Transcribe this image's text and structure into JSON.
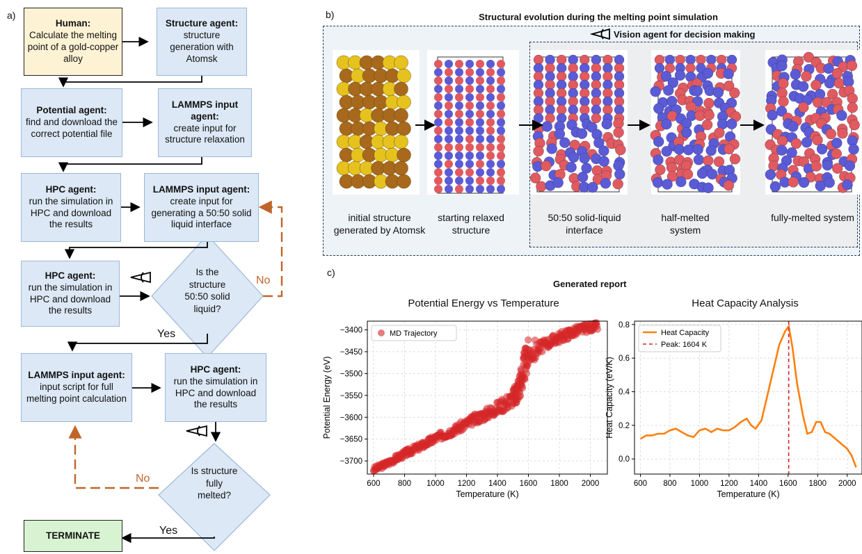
{
  "panel_a": {
    "letter": "a)",
    "human": {
      "title": "Human:",
      "text": "Calculate the melting point of a gold-copper alloy"
    },
    "structure_agent": {
      "title": "Structure agent:",
      "text": "structure generation with Atomsk"
    },
    "potential_agent": {
      "title": "Potential agent:",
      "text": "find and download the correct potential file"
    },
    "lammps_relax": {
      "title": "LAMMPS input agent:",
      "text": "create input for structure relaxation"
    },
    "hpc_1": {
      "title": "HPC agent:",
      "text": "run the simulation in HPC and download the results"
    },
    "lammps_interface": {
      "title": "LAMMPS input agent:",
      "text": "create input for generating a 50:50 solid liquid interface"
    },
    "hpc_2": {
      "title": "HPC agent:",
      "text": "run the simulation in HPC and download the results"
    },
    "decision_1": "Is the structure 50:50 solid liquid?",
    "lammps_full": {
      "title": "LAMMPS input agent:",
      "text": "input script for full melting point calculation"
    },
    "hpc_3": {
      "title": "HPC agent:",
      "text": "run the simulation in HPC and download the results"
    },
    "decision_2": "Is structure fully melted?",
    "terminate": "TERMINATE",
    "yes_1": "Yes",
    "no_1": "No",
    "yes_2": "Yes",
    "no_2": "No",
    "colors": {
      "box": "#dce8f5",
      "human": "#fdf2d4",
      "terminate": "#d8f3d2",
      "no_arrow": "#c0652a"
    }
  },
  "panel_b": {
    "letter": "b)",
    "title": "Structural evolution during the melting point simulation",
    "vision_label": "Vision agent for decision making",
    "captions": [
      "initial structure generated by Atomsk",
      "starting relaxed structure",
      "50:50 solid-liquid interface",
      "half-melted system",
      "fully-melted system"
    ],
    "colors": {
      "gold": "#e6c21e",
      "copper": "#a8691c",
      "red_atom": "#e05a5f",
      "blue_atom": "#5b5bd6"
    }
  },
  "panel_c": {
    "letter": "c)",
    "title": "Generated report"
  },
  "chart_data": [
    {
      "type": "scatter",
      "title": "Potential Energy vs Temperature",
      "xlabel": "Temperature (K)",
      "ylabel": "Potential Energy (eV)",
      "xlim": [
        560,
        2110
      ],
      "ylim": [
        -3730,
        -3380
      ],
      "xticks": [
        "600",
        "800",
        "1000",
        "1200",
        "1400",
        "1600",
        "1800",
        "2000"
      ],
      "yticks": [
        "-3400",
        "-3450",
        "-3500",
        "-3550",
        "-3600",
        "-3650",
        "-3700"
      ],
      "grid": true,
      "legend": {
        "entries": [
          "MD Trajectory"
        ],
        "placement": "top-left"
      },
      "color": "#d62728",
      "series": [
        {
          "name": "MD Trajectory",
          "x": [
            600,
            650,
            700,
            750,
            800,
            850,
            900,
            950,
            1000,
            1050,
            1100,
            1150,
            1200,
            1250,
            1300,
            1350,
            1400,
            1450,
            1500,
            1520,
            1540,
            1560,
            1580,
            1600,
            1650,
            1700,
            1750,
            1800,
            1850,
            1900,
            1950,
            2000,
            2050
          ],
          "y": [
            -3720,
            -3712,
            -3703,
            -3693,
            -3684,
            -3675,
            -3667,
            -3658,
            -3648,
            -3640,
            -3632,
            -3624,
            -3615,
            -3605,
            -3597,
            -3588,
            -3578,
            -3568,
            -3556,
            -3545,
            -3528,
            -3505,
            -3475,
            -3455,
            -3445,
            -3435,
            -3425,
            -3417,
            -3410,
            -3403,
            -3398,
            -3394,
            -3392
          ],
          "spread": [
            6,
            6,
            7,
            7,
            8,
            8,
            8,
            9,
            9,
            10,
            10,
            11,
            11,
            12,
            13,
            14,
            16,
            18,
            22,
            28,
            35,
            38,
            35,
            25,
            14,
            12,
            12,
            12,
            12,
            11,
            10,
            9,
            8
          ]
        }
      ]
    },
    {
      "type": "line",
      "title": "Heat Capacity Analysis",
      "xlabel": "Temperature (K)",
      "ylabel": "Heat Capacity (eV/K)",
      "xlim": [
        560,
        2100
      ],
      "ylim": [
        -0.09,
        0.82
      ],
      "xticks": [
        "600",
        "800",
        "1000",
        "1200",
        "1400",
        "1600",
        "1800",
        "2000"
      ],
      "yticks": [
        "0.0",
        "0.2",
        "0.4",
        "0.6",
        "0.8"
      ],
      "grid": true,
      "legend": {
        "entries": [
          "Heat Capacity",
          "Peak: 1604 K"
        ],
        "placement": "top-left"
      },
      "series": [
        {
          "name": "Heat Capacity",
          "color": "#ff7f0e",
          "x": [
            600,
            640,
            680,
            720,
            760,
            800,
            840,
            880,
            920,
            960,
            1000,
            1040,
            1080,
            1120,
            1160,
            1200,
            1240,
            1280,
            1320,
            1350,
            1380,
            1420,
            1460,
            1500,
            1540,
            1580,
            1604,
            1630,
            1660,
            1700,
            1730,
            1760,
            1790,
            1820,
            1850,
            1880,
            1920,
            1960,
            2000,
            2030,
            2060
          ],
          "y": [
            0.12,
            0.14,
            0.14,
            0.15,
            0.15,
            0.17,
            0.18,
            0.16,
            0.14,
            0.13,
            0.17,
            0.18,
            0.16,
            0.18,
            0.17,
            0.17,
            0.19,
            0.22,
            0.24,
            0.2,
            0.18,
            0.23,
            0.38,
            0.53,
            0.68,
            0.76,
            0.79,
            0.66,
            0.45,
            0.26,
            0.15,
            0.16,
            0.22,
            0.22,
            0.16,
            0.15,
            0.12,
            0.09,
            0.06,
            0.02,
            -0.05
          ]
        },
        {
          "name": "Peak: 1604 K",
          "color": "#d62728",
          "style": "dashed",
          "x": 1604
        }
      ]
    }
  ]
}
